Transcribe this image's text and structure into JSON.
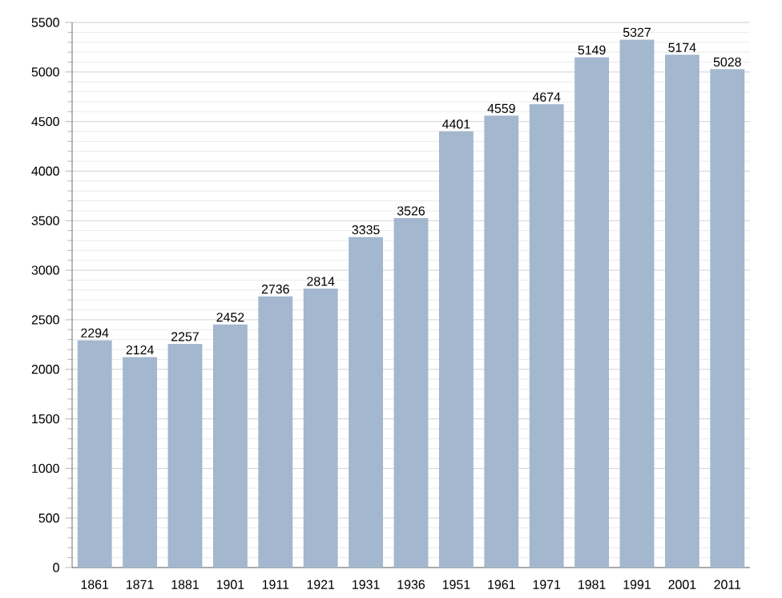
{
  "chart_data": {
    "type": "bar",
    "categories": [
      "1861",
      "1871",
      "1881",
      "1901",
      "1911",
      "1921",
      "1931",
      "1936",
      "1951",
      "1961",
      "1971",
      "1981",
      "1991",
      "2001",
      "2011"
    ],
    "values": [
      2294,
      2124,
      2257,
      2452,
      2736,
      2814,
      3335,
      3526,
      4401,
      4559,
      4674,
      5149,
      5327,
      5174,
      5028
    ],
    "color": "#a3b7cf",
    "ylim": [
      0,
      5500
    ],
    "yticks": [
      0,
      500,
      1000,
      1500,
      2000,
      2500,
      3000,
      3500,
      4000,
      4500,
      5000,
      5500
    ],
    "grid": "y",
    "data_labels": true
  }
}
